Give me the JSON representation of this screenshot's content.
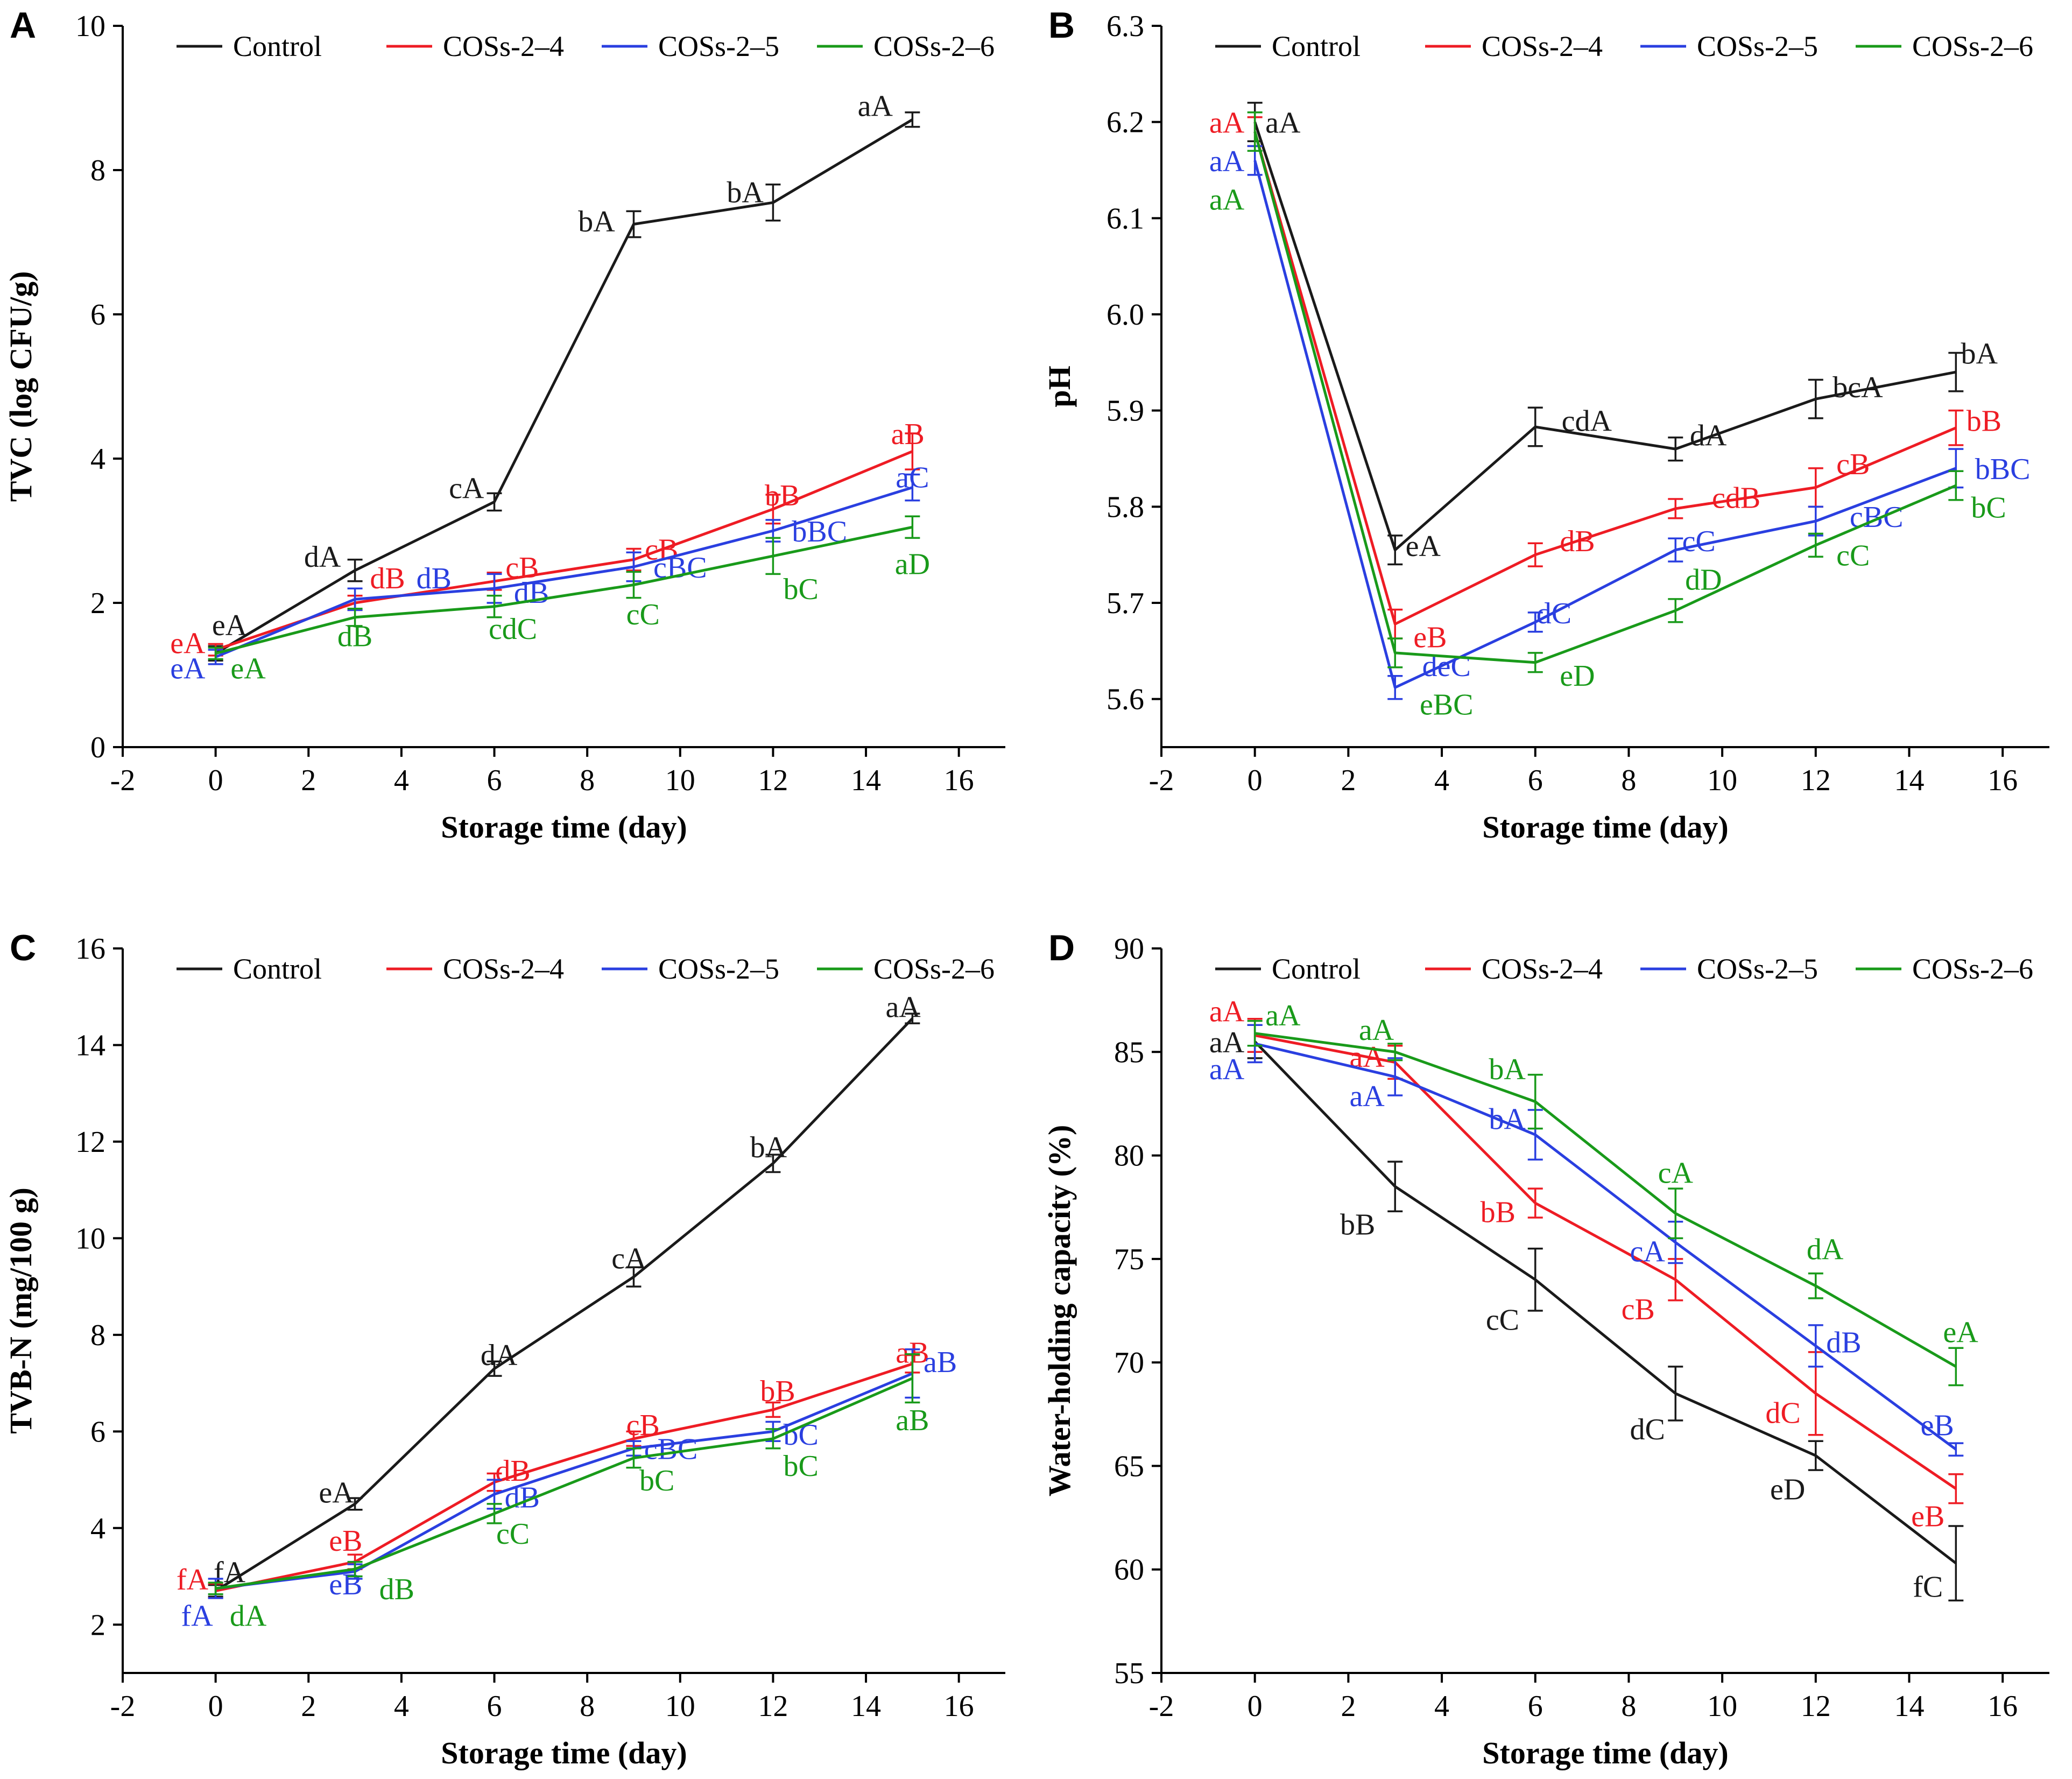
{
  "figure": {
    "colors": {
      "Control": "#1a1a1a",
      "COSs-2–4": "#ee1c24",
      "COSs-2–5": "#2a3fe0",
      "COSs-2–6": "#199a1a"
    }
  },
  "chart_data": [
    {
      "panel": "A",
      "type": "line",
      "xlabel": "Storage time (day)",
      "ylabel": "TVC (log CFU/g)",
      "xlim": [
        -2,
        17
      ],
      "ylim": [
        0,
        10
      ],
      "xticks": [
        -2,
        0,
        2,
        4,
        6,
        8,
        10,
        12,
        14,
        16
      ],
      "yticks": [
        0,
        2,
        4,
        6,
        8,
        10
      ],
      "x": [
        0,
        3,
        6,
        9,
        12,
        15
      ],
      "series": [
        {
          "name": "Control",
          "values": [
            1.3,
            2.45,
            3.4,
            7.25,
            7.55,
            8.7
          ],
          "errors": [
            0.1,
            0.15,
            0.12,
            0.18,
            0.25,
            0.1
          ],
          "labels": [
            {
              "text": "eA",
              "x": 0.3,
              "y": 1.7
            },
            {
              "text": "dA",
              "x": 2.3,
              "y": 2.65
            },
            {
              "text": "cA",
              "x": 5.4,
              "y": 3.6
            },
            {
              "text": "bA",
              "x": 8.2,
              "y": 7.3
            },
            {
              "text": "bA",
              "x": 11.4,
              "y": 7.7
            },
            {
              "text": "aA",
              "x": 14.2,
              "y": 8.9
            }
          ]
        },
        {
          "name": "COSs-2–4",
          "values": [
            1.35,
            2.0,
            2.3,
            2.6,
            3.3,
            4.1
          ],
          "errors": [
            0.08,
            0.1,
            0.12,
            0.15,
            0.2,
            0.25
          ],
          "labels": [
            {
              "text": "eA",
              "x": -0.6,
              "y": 1.45
            },
            {
              "text": "dB",
              "x": 3.7,
              "y": 2.35
            },
            {
              "text": "cB",
              "x": 6.6,
              "y": 2.5
            },
            {
              "text": "cB",
              "x": 9.6,
              "y": 2.75
            },
            {
              "text": "bB",
              "x": 12.2,
              "y": 3.5
            },
            {
              "text": "aB",
              "x": 14.9,
              "y": 4.35
            }
          ]
        },
        {
          "name": "COSs-2–5",
          "values": [
            1.25,
            2.05,
            2.2,
            2.5,
            3.0,
            3.6
          ],
          "errors": [
            0.1,
            0.15,
            0.2,
            0.2,
            0.15,
            0.18
          ],
          "labels": [
            {
              "text": "eA",
              "x": -0.6,
              "y": 1.1
            },
            {
              "text": "dB",
              "x": 4.7,
              "y": 2.35
            },
            {
              "text": "dB",
              "x": 6.8,
              "y": 2.15
            },
            {
              "text": "cBC",
              "x": 10.0,
              "y": 2.5
            },
            {
              "text": "bBC",
              "x": 13.0,
              "y": 3.0
            },
            {
              "text": "aC",
              "x": 15.0,
              "y": 3.75
            }
          ]
        },
        {
          "name": "COSs-2–6",
          "values": [
            1.3,
            1.8,
            1.95,
            2.25,
            2.65,
            3.05
          ],
          "errors": [
            0.08,
            0.12,
            0.15,
            0.18,
            0.25,
            0.15
          ],
          "labels": [
            {
              "text": "eA",
              "x": 0.7,
              "y": 1.1
            },
            {
              "text": "dB",
              "x": 3.0,
              "y": 1.55
            },
            {
              "text": "cdC",
              "x": 6.4,
              "y": 1.65
            },
            {
              "text": "cC",
              "x": 9.2,
              "y": 1.85
            },
            {
              "text": "bC",
              "x": 12.6,
              "y": 2.2
            },
            {
              "text": "aD",
              "x": 15.0,
              "y": 2.55
            }
          ]
        }
      ]
    },
    {
      "panel": "B",
      "type": "line",
      "xlabel": "Storage time (day)",
      "ylabel": "pH",
      "xlim": [
        -2,
        17
      ],
      "ylim": [
        5.55,
        6.3
      ],
      "xticks": [
        -2,
        0,
        2,
        4,
        6,
        8,
        10,
        12,
        14,
        16
      ],
      "yticks": [
        5.6,
        5.7,
        5.8,
        5.9,
        6.0,
        6.1,
        6.2,
        6.3
      ],
      "x": [
        0,
        3,
        6,
        9,
        12,
        15
      ],
      "series": [
        {
          "name": "Control",
          "values": [
            6.2,
            5.755,
            5.883,
            5.86,
            5.912,
            5.94
          ],
          "errors": [
            0.02,
            0.015,
            0.02,
            0.012,
            0.02,
            0.02
          ],
          "labels": [
            {
              "text": "aA",
              "x": 0.6,
              "y": 6.2
            },
            {
              "text": "eA",
              "x": 3.6,
              "y": 5.76
            },
            {
              "text": "cdA",
              "x": 7.1,
              "y": 5.89
            },
            {
              "text": "dA",
              "x": 9.7,
              "y": 5.875
            },
            {
              "text": "bcA",
              "x": 12.9,
              "y": 5.925
            },
            {
              "text": "bA",
              "x": 15.5,
              "y": 5.96
            }
          ]
        },
        {
          "name": "COSs-2–4",
          "values": [
            6.19,
            5.678,
            5.75,
            5.798,
            5.82,
            5.882
          ],
          "errors": [
            0.015,
            0.015,
            0.012,
            0.01,
            0.02,
            0.018
          ],
          "labels": [
            {
              "text": "aA",
              "x": -0.6,
              "y": 6.2
            },
            {
              "text": "eB",
              "x": 3.75,
              "y": 5.665
            },
            {
              "text": "dB",
              "x": 6.9,
              "y": 5.765
            },
            {
              "text": "cdB",
              "x": 10.3,
              "y": 5.81
            },
            {
              "text": "cB",
              "x": 12.8,
              "y": 5.845
            },
            {
              "text": "bB",
              "x": 15.6,
              "y": 5.89
            }
          ]
        },
        {
          "name": "COSs-2–5",
          "values": [
            6.16,
            5.612,
            5.68,
            5.755,
            5.785,
            5.84
          ],
          "errors": [
            0.015,
            0.012,
            0.01,
            0.012,
            0.015,
            0.02
          ],
          "labels": [
            {
              "text": "aA",
              "x": -0.6,
              "y": 6.16
            },
            {
              "text": "deC",
              "x": 4.1,
              "y": 5.635
            },
            {
              "text": "dC",
              "x": 6.4,
              "y": 5.69
            },
            {
              "text": "cC",
              "x": 9.5,
              "y": 5.765
            },
            {
              "text": "cBC",
              "x": 13.3,
              "y": 5.79
            },
            {
              "text": "bBC",
              "x": 16.0,
              "y": 5.84
            }
          ]
        },
        {
          "name": "COSs-2–6",
          "values": [
            6.19,
            5.648,
            5.638,
            5.692,
            5.76,
            5.822
          ],
          "errors": [
            0.02,
            0.015,
            0.01,
            0.012,
            0.012,
            0.015
          ],
          "labels": [
            {
              "text": "aA",
              "x": -0.6,
              "y": 6.12
            },
            {
              "text": "eBC",
              "x": 4.1,
              "y": 5.595
            },
            {
              "text": "eD",
              "x": 6.9,
              "y": 5.625
            },
            {
              "text": "dD",
              "x": 9.6,
              "y": 5.725
            },
            {
              "text": "cC",
              "x": 12.8,
              "y": 5.75
            },
            {
              "text": "bC",
              "x": 15.7,
              "y": 5.8
            }
          ]
        }
      ]
    },
    {
      "panel": "C",
      "type": "line",
      "xlabel": "Storage time (day)",
      "ylabel": "TVB-N (mg/100 g)",
      "xlim": [
        -2,
        17
      ],
      "ylim": [
        1,
        16
      ],
      "xticks": [
        -2,
        0,
        2,
        4,
        6,
        8,
        10,
        12,
        14,
        16
      ],
      "yticks": [
        2,
        4,
        6,
        8,
        10,
        12,
        14,
        16
      ],
      "x": [
        0,
        3,
        6,
        9,
        12,
        15
      ],
      "series": [
        {
          "name": "Control",
          "values": [
            2.7,
            4.5,
            7.3,
            9.2,
            11.55,
            14.55
          ],
          "errors": [
            0.12,
            0.12,
            0.15,
            0.2,
            0.18,
            0.1
          ],
          "labels": [
            {
              "text": "fA",
              "x": 0.3,
              "y": 3.1
            },
            {
              "text": "eA",
              "x": 2.6,
              "y": 4.75
            },
            {
              "text": "dA",
              "x": 6.1,
              "y": 7.6
            },
            {
              "text": "cA",
              "x": 8.9,
              "y": 9.6
            },
            {
              "text": "bA",
              "x": 11.9,
              "y": 11.9
            },
            {
              "text": "aA",
              "x": 14.8,
              "y": 14.8
            }
          ]
        },
        {
          "name": "COSs-2–4",
          "values": [
            2.7,
            3.3,
            4.95,
            5.85,
            6.45,
            7.4
          ],
          "errors": [
            0.15,
            0.15,
            0.18,
            0.15,
            0.15,
            0.18
          ],
          "labels": [
            {
              "text": "fA",
              "x": -0.5,
              "y": 2.95
            },
            {
              "text": "eB",
              "x": 2.8,
              "y": 3.75
            },
            {
              "text": "dB",
              "x": 6.4,
              "y": 5.2
            },
            {
              "text": "cB",
              "x": 9.2,
              "y": 6.15
            },
            {
              "text": "bB",
              "x": 12.1,
              "y": 6.85
            },
            {
              "text": "aB",
              "x": 15.0,
              "y": 7.65
            }
          ]
        },
        {
          "name": "COSs-2–5",
          "values": [
            2.75,
            3.1,
            4.7,
            5.65,
            6.0,
            7.2
          ],
          "errors": [
            0.2,
            0.15,
            0.3,
            0.15,
            0.2,
            0.5
          ],
          "labels": [
            {
              "text": "fA",
              "x": -0.4,
              "y": 2.2
            },
            {
              "text": "eB",
              "x": 2.8,
              "y": 2.85
            },
            {
              "text": "dB",
              "x": 6.6,
              "y": 4.65
            },
            {
              "text": "cBC",
              "x": 9.8,
              "y": 5.65
            },
            {
              "text": "bC",
              "x": 12.6,
              "y": 5.95
            },
            {
              "text": "aB",
              "x": 15.6,
              "y": 7.45
            }
          ]
        },
        {
          "name": "COSs-2–6",
          "values": [
            2.75,
            3.15,
            4.3,
            5.45,
            5.85,
            7.1
          ],
          "errors": [
            0.12,
            0.15,
            0.2,
            0.2,
            0.2,
            0.5
          ],
          "labels": [
            {
              "text": "dA",
              "x": 0.7,
              "y": 2.2
            },
            {
              "text": "dB",
              "x": 3.9,
              "y": 2.75
            },
            {
              "text": "cC",
              "x": 6.4,
              "y": 3.9
            },
            {
              "text": "bC",
              "x": 9.5,
              "y": 5.0
            },
            {
              "text": "bC",
              "x": 12.6,
              "y": 5.3
            },
            {
              "text": "aB",
              "x": 15.0,
              "y": 6.25
            }
          ]
        }
      ]
    },
    {
      "panel": "D",
      "type": "line",
      "xlabel": "Storage time (day)",
      "ylabel": "Water-holding capacity (%)",
      "xlim": [
        -2,
        17
      ],
      "ylim": [
        55,
        90
      ],
      "xticks": [
        -2,
        0,
        2,
        4,
        6,
        8,
        10,
        12,
        14,
        16
      ],
      "yticks": [
        55,
        60,
        65,
        70,
        75,
        80,
        85,
        90
      ],
      "x": [
        0,
        3,
        6,
        9,
        12,
        15
      ],
      "series": [
        {
          "name": "Control",
          "values": [
            85.5,
            78.5,
            74.0,
            68.5,
            65.5,
            60.3
          ],
          "errors": [
            0.8,
            1.2,
            1.5,
            1.3,
            0.7,
            1.8
          ],
          "labels": [
            {
              "text": "aA",
              "x": -0.6,
              "y": 85.5
            },
            {
              "text": "bB",
              "x": 2.2,
              "y": 76.7
            },
            {
              "text": "cC",
              "x": 5.3,
              "y": 72.1
            },
            {
              "text": "dC",
              "x": 8.4,
              "y": 66.8
            },
            {
              "text": "eD",
              "x": 11.4,
              "y": 63.9
            },
            {
              "text": "fC",
              "x": 14.4,
              "y": 59.2
            }
          ]
        },
        {
          "name": "COSs-2–4",
          "values": [
            85.8,
            84.5,
            77.7,
            74.0,
            68.5,
            63.9
          ],
          "errors": [
            0.8,
            0.8,
            0.7,
            1.0,
            2.0,
            0.7
          ],
          "labels": [
            {
              "text": "aA",
              "x": -0.6,
              "y": 87.0
            },
            {
              "text": "aA",
              "x": 2.4,
              "y": 84.8
            },
            {
              "text": "bB",
              "x": 5.2,
              "y": 77.3
            },
            {
              "text": "cB",
              "x": 8.2,
              "y": 72.6
            },
            {
              "text": "dC",
              "x": 11.3,
              "y": 67.6
            },
            {
              "text": "eB",
              "x": 14.4,
              "y": 62.6
            }
          ]
        },
        {
          "name": "COSs-2–5",
          "values": [
            85.4,
            83.8,
            81.0,
            75.8,
            70.8,
            65.8
          ],
          "errors": [
            0.9,
            0.9,
            1.2,
            1.0,
            1.0,
            0.3
          ],
          "labels": [
            {
              "text": "aA",
              "x": -0.6,
              "y": 84.2
            },
            {
              "text": "aA",
              "x": 2.4,
              "y": 82.9
            },
            {
              "text": "bA",
              "x": 5.4,
              "y": 81.8
            },
            {
              "text": "cA",
              "x": 8.4,
              "y": 75.4
            },
            {
              "text": "dB",
              "x": 12.6,
              "y": 71.0
            },
            {
              "text": "eB",
              "x": 14.6,
              "y": 67.0
            }
          ]
        },
        {
          "name": "COSs-2–6",
          "values": [
            85.9,
            85.0,
            82.6,
            77.2,
            73.7,
            69.8
          ],
          "errors": [
            0.6,
            0.4,
            1.3,
            1.2,
            0.6,
            0.9
          ],
          "labels": [
            {
              "text": "aA",
              "x": 0.6,
              "y": 86.8
            },
            {
              "text": "aA",
              "x": 2.6,
              "y": 86.1
            },
            {
              "text": "bA",
              "x": 5.4,
              "y": 84.2
            },
            {
              "text": "cA",
              "x": 9.0,
              "y": 79.2
            },
            {
              "text": "dA",
              "x": 12.2,
              "y": 75.5
            },
            {
              "text": "eA",
              "x": 15.1,
              "y": 71.5
            }
          ]
        }
      ]
    }
  ]
}
